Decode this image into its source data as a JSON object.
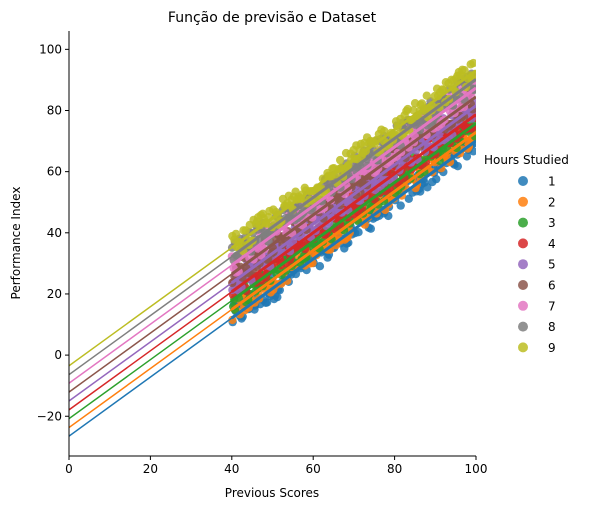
{
  "chart_data": {
    "type": "scatter",
    "title": "Função de previsão e Dataset",
    "xlabel": "Previous Scores",
    "ylabel": "Performance Index",
    "xlim": [
      0,
      100
    ],
    "ylim": [
      -33,
      106
    ],
    "xticks": [
      0,
      20,
      40,
      60,
      80,
      100
    ],
    "yticks": [
      -20,
      0,
      20,
      40,
      60,
      80,
      100
    ],
    "xtick_labels": [
      "0",
      "20",
      "40",
      "60",
      "80",
      "100"
    ],
    "ytick_labels": [
      "−20",
      "0",
      "20",
      "40",
      "60",
      "80",
      "100"
    ],
    "grid": false,
    "legend_title": "Hours Studied",
    "legend_position": "right",
    "data_x_range": [
      40,
      100
    ],
    "scatter_band_half_width": 4,
    "series": [
      {
        "name": "1",
        "color": "#1f77b4",
        "intercept": -26.5,
        "slope": 0.9657
      },
      {
        "name": "2",
        "color": "#ff7f0e",
        "intercept": -23.7,
        "slope": 0.9657
      },
      {
        "name": "3",
        "color": "#2ca02c",
        "intercept": -20.8,
        "slope": 0.9657
      },
      {
        "name": "4",
        "color": "#d62728",
        "intercept": -17.9,
        "slope": 0.9657
      },
      {
        "name": "5",
        "color": "#9467bd",
        "intercept": -15.0,
        "slope": 0.9657
      },
      {
        "name": "6",
        "color": "#8c564b",
        "intercept": -12.1,
        "slope": 0.9657
      },
      {
        "name": "7",
        "color": "#e377c2",
        "intercept": -9.2,
        "slope": 0.9657
      },
      {
        "name": "8",
        "color": "#7f7f7f",
        "intercept": -6.4,
        "slope": 0.9657
      },
      {
        "name": "9",
        "color": "#bcbd22",
        "intercept": -3.5,
        "slope": 0.9657
      }
    ]
  }
}
